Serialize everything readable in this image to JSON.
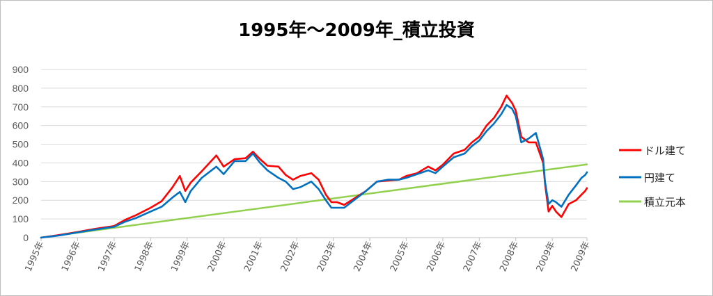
{
  "chart_data": {
    "type": "line",
    "title": "1995年～2009年_積立投資",
    "xlabel": "",
    "ylabel": "",
    "ylim": [
      0,
      900
    ],
    "yticks": [
      0,
      100,
      200,
      300,
      400,
      500,
      600,
      700,
      800,
      900
    ],
    "xlim": [
      1995,
      2009.95
    ],
    "xticks": [
      "1995年",
      "1996年",
      "1997年",
      "1998年",
      "1999年",
      "2000年",
      "2001年",
      "2002年",
      "2003年",
      "2004年",
      "2005年",
      "2006年",
      "2007年",
      "2008年",
      "2009年",
      "2009年"
    ],
    "grid": true,
    "legend_position": "right",
    "series": [
      {
        "name": "ドル建て",
        "color": "#ff0000",
        "points": [
          [
            1995.0,
            0
          ],
          [
            1995.5,
            14
          ],
          [
            1996.0,
            30
          ],
          [
            1996.5,
            48
          ],
          [
            1997.0,
            62
          ],
          [
            1997.3,
            95
          ],
          [
            1997.6,
            120
          ],
          [
            1998.0,
            160
          ],
          [
            1998.3,
            195
          ],
          [
            1998.6,
            270
          ],
          [
            1998.8,
            330
          ],
          [
            1998.95,
            250
          ],
          [
            1999.1,
            295
          ],
          [
            1999.4,
            355
          ],
          [
            1999.8,
            440
          ],
          [
            2000.0,
            380
          ],
          [
            2000.3,
            420
          ],
          [
            2000.6,
            425
          ],
          [
            2000.8,
            460
          ],
          [
            2001.0,
            420
          ],
          [
            2001.2,
            385
          ],
          [
            2001.5,
            380
          ],
          [
            2001.7,
            335
          ],
          [
            2001.9,
            310
          ],
          [
            2002.1,
            330
          ],
          [
            2002.4,
            345
          ],
          [
            2002.6,
            310
          ],
          [
            2002.8,
            230
          ],
          [
            2002.95,
            190
          ],
          [
            2003.1,
            190
          ],
          [
            2003.3,
            175
          ],
          [
            2003.5,
            200
          ],
          [
            2003.7,
            225
          ],
          [
            2003.9,
            250
          ],
          [
            2004.2,
            300
          ],
          [
            2004.5,
            305
          ],
          [
            2004.8,
            310
          ],
          [
            2005.0,
            330
          ],
          [
            2005.3,
            345
          ],
          [
            2005.6,
            380
          ],
          [
            2005.8,
            360
          ],
          [
            2006.0,
            390
          ],
          [
            2006.3,
            450
          ],
          [
            2006.6,
            470
          ],
          [
            2006.8,
            510
          ],
          [
            2007.0,
            540
          ],
          [
            2007.2,
            600
          ],
          [
            2007.4,
            640
          ],
          [
            2007.6,
            700
          ],
          [
            2007.75,
            760
          ],
          [
            2007.9,
            720
          ],
          [
            2008.0,
            680
          ],
          [
            2008.15,
            540
          ],
          [
            2008.35,
            510
          ],
          [
            2008.55,
            510
          ],
          [
            2008.75,
            400
          ],
          [
            2008.8,
            290
          ],
          [
            2008.9,
            140
          ],
          [
            2009.0,
            170
          ],
          [
            2009.1,
            140
          ],
          [
            2009.25,
            110
          ],
          [
            2009.45,
            180
          ],
          [
            2009.65,
            200
          ],
          [
            2009.8,
            230
          ],
          [
            2009.9,
            250
          ],
          [
            2009.95,
            265
          ]
        ]
      },
      {
        "name": "円建て",
        "color": "#0070c0",
        "points": [
          [
            1995.0,
            0
          ],
          [
            1995.5,
            12
          ],
          [
            1996.0,
            28
          ],
          [
            1996.5,
            44
          ],
          [
            1997.0,
            58
          ],
          [
            1997.3,
            85
          ],
          [
            1997.6,
            105
          ],
          [
            1998.0,
            140
          ],
          [
            1998.3,
            165
          ],
          [
            1998.6,
            215
          ],
          [
            1998.8,
            245
          ],
          [
            1998.95,
            190
          ],
          [
            1999.1,
            250
          ],
          [
            1999.4,
            320
          ],
          [
            1999.8,
            380
          ],
          [
            2000.0,
            340
          ],
          [
            2000.3,
            410
          ],
          [
            2000.6,
            410
          ],
          [
            2000.8,
            450
          ],
          [
            2001.0,
            400
          ],
          [
            2001.2,
            360
          ],
          [
            2001.5,
            320
          ],
          [
            2001.7,
            300
          ],
          [
            2001.9,
            260
          ],
          [
            2002.1,
            270
          ],
          [
            2002.4,
            300
          ],
          [
            2002.6,
            260
          ],
          [
            2002.8,
            200
          ],
          [
            2002.95,
            160
          ],
          [
            2003.1,
            160
          ],
          [
            2003.3,
            160
          ],
          [
            2003.5,
            190
          ],
          [
            2003.7,
            220
          ],
          [
            2003.9,
            250
          ],
          [
            2004.2,
            300
          ],
          [
            2004.5,
            310
          ],
          [
            2004.8,
            310
          ],
          [
            2005.0,
            320
          ],
          [
            2005.3,
            340
          ],
          [
            2005.6,
            360
          ],
          [
            2005.8,
            345
          ],
          [
            2006.0,
            380
          ],
          [
            2006.3,
            430
          ],
          [
            2006.6,
            450
          ],
          [
            2006.8,
            490
          ],
          [
            2007.0,
            520
          ],
          [
            2007.2,
            570
          ],
          [
            2007.4,
            610
          ],
          [
            2007.6,
            660
          ],
          [
            2007.75,
            710
          ],
          [
            2007.9,
            690
          ],
          [
            2008.0,
            650
          ],
          [
            2008.15,
            510
          ],
          [
            2008.35,
            530
          ],
          [
            2008.55,
            560
          ],
          [
            2008.75,
            420
          ],
          [
            2008.8,
            300
          ],
          [
            2008.9,
            180
          ],
          [
            2009.0,
            200
          ],
          [
            2009.1,
            190
          ],
          [
            2009.25,
            165
          ],
          [
            2009.45,
            230
          ],
          [
            2009.65,
            280
          ],
          [
            2009.8,
            320
          ],
          [
            2009.9,
            335
          ],
          [
            2009.95,
            350
          ]
        ]
      },
      {
        "name": "積立元本",
        "color": "#92d050",
        "points": [
          [
            1995.0,
            0
          ],
          [
            2009.95,
            392
          ]
        ]
      }
    ]
  }
}
